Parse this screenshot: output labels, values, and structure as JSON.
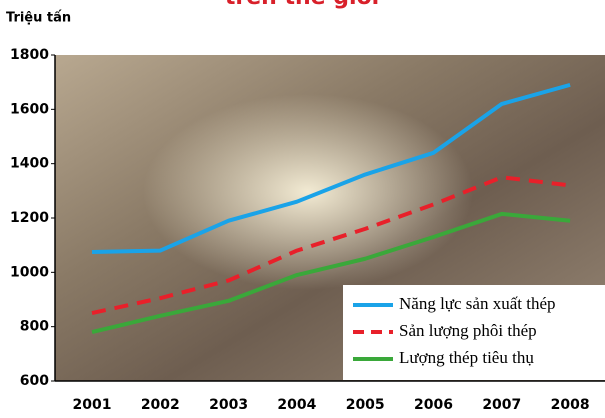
{
  "chart_data": {
    "type": "line",
    "title": "trên thế giới",
    "y_label": "Triệu tấn",
    "categories": [
      "2001",
      "2002",
      "2003",
      "2004",
      "2005",
      "2006",
      "2007",
      "2008"
    ],
    "series": [
      {
        "name": "Năng lực sản xuất thép",
        "color": "#1aa3e8",
        "dash": "solid",
        "values": [
          1075,
          1080,
          1190,
          1260,
          1360,
          1440,
          1620,
          1690
        ]
      },
      {
        "name": "Sản lượng phôi thép",
        "color": "#e8202a",
        "dash": "dashed",
        "values": [
          850,
          905,
          970,
          1080,
          1160,
          1250,
          1350,
          1320
        ]
      },
      {
        "name": "Lượng thép tiêu thụ",
        "color": "#3aa83a",
        "dash": "solid",
        "values": [
          780,
          840,
          895,
          990,
          1050,
          1130,
          1215,
          1190
        ]
      }
    ],
    "ylim": [
      600,
      1800
    ],
    "yticks": [
      600,
      800,
      1000,
      1200,
      1400,
      1600,
      1800
    ],
    "legend": "lower right"
  }
}
